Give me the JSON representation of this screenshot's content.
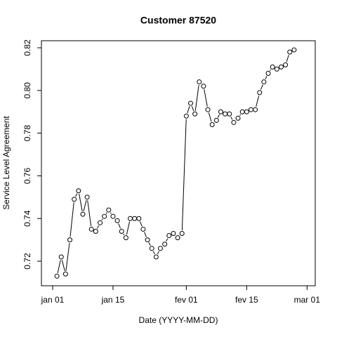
{
  "chart_data": {
    "type": "line",
    "title": "Customer 87520",
    "x_label": "Date (YYYY-MM-DD)",
    "y_label": "Service Level Agreement",
    "x": [
      2,
      3,
      4,
      5,
      6,
      7,
      8,
      9,
      10,
      11,
      12,
      13,
      14,
      15,
      16,
      17,
      18,
      19,
      20,
      21,
      22,
      23,
      24,
      25,
      26,
      27,
      28,
      29,
      30,
      31,
      32,
      33,
      34,
      35,
      36,
      37,
      38,
      39,
      40,
      41,
      42,
      43,
      44,
      45,
      46,
      47,
      48,
      49,
      50,
      51,
      52,
      53,
      54,
      55,
      56,
      57
    ],
    "values": [
      0.713,
      0.722,
      0.714,
      0.73,
      0.749,
      0.753,
      0.742,
      0.75,
      0.735,
      0.734,
      0.738,
      0.741,
      0.744,
      0.741,
      0.739,
      0.734,
      0.731,
      0.74,
      0.74,
      0.74,
      0.735,
      0.73,
      0.726,
      0.722,
      0.726,
      0.728,
      0.732,
      0.733,
      0.731,
      0.733,
      0.788,
      0.794,
      0.789,
      0.804,
      0.802,
      0.791,
      0.784,
      0.786,
      0.79,
      0.789,
      0.789,
      0.785,
      0.787,
      0.79,
      0.79,
      0.791,
      0.791,
      0.799,
      0.804,
      0.808,
      0.811,
      0.81,
      0.811,
      0.812,
      0.818,
      0.819
    ],
    "color": "#000000",
    "xlim": [
      -1.6,
      61.9
    ],
    "xticks": [
      {
        "value": 1,
        "label": "jan 01"
      },
      {
        "value": 15,
        "label": "jan 15"
      },
      {
        "value": 32,
        "label": "fev 01"
      },
      {
        "value": 46,
        "label": "fev 15"
      },
      {
        "value": 60,
        "label": "mar 01"
      }
    ],
    "ylim": [
      0.7085,
      0.8233
    ],
    "yticks": [
      {
        "value": 0.72,
        "label": "0.72"
      },
      {
        "value": 0.74,
        "label": "0.74"
      },
      {
        "value": 0.76,
        "label": "0.76"
      },
      {
        "value": 0.78,
        "label": "0.78"
      },
      {
        "value": 0.8,
        "label": "0.80"
      },
      {
        "value": 0.82,
        "label": "0.82"
      }
    ]
  }
}
